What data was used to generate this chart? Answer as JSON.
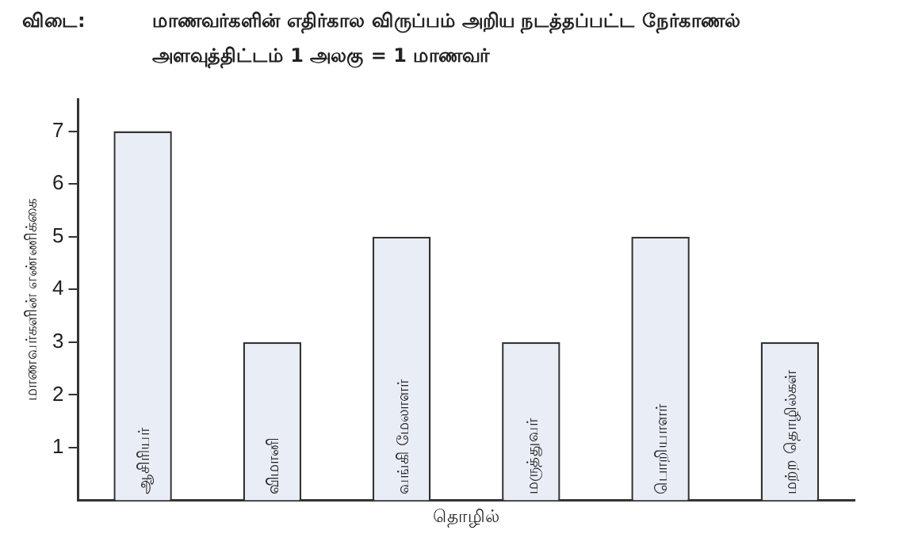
{
  "chart_data": {
    "type": "bar",
    "title": "மாணவர்களின் எதிர்கால விருப்பம் அறிய நடத்தப்பட்ட நேர்காணல்",
    "subtitle": "அளவுத்திட்டம் 1 அலகு = 1 மாணவர்",
    "annotations": [
      "விடை:"
    ],
    "xlabel": "தொழில்",
    "ylabel": "மாணவர்களின் எண்ணிக்கை",
    "categories": [
      "ஆசிரியர்",
      "விமானி",
      "வங்கி மேலாளர்",
      "மருத்துவர்",
      "பொறியாளர்",
      "மற்ற தொழில்கள்"
    ],
    "values": [
      7,
      3,
      5,
      3,
      5,
      3
    ],
    "color": "#e9edf5",
    "ylim": [
      0,
      7.6
    ],
    "yticks": [
      1,
      2,
      3,
      4,
      5,
      6,
      7
    ],
    "grid": false,
    "legend": false
  }
}
